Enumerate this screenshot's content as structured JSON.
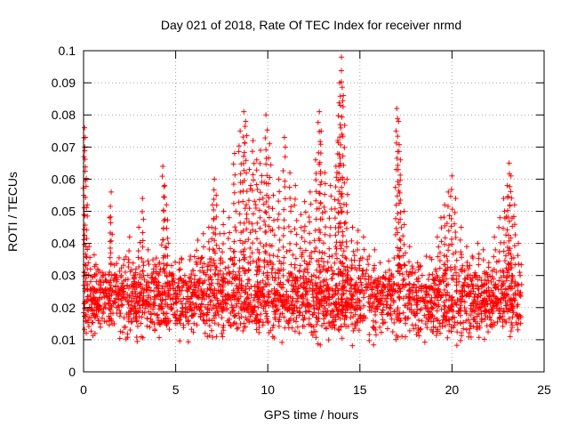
{
  "chart_data": {
    "type": "scatter",
    "title": "Day 021 of 2018, Rate Of TEC Index for receiver nrmd",
    "xlabel": "GPS time / hours",
    "ylabel": "ROTI / TECUs",
    "xlim": [
      0,
      25
    ],
    "ylim": [
      0,
      0.1
    ],
    "x_ticks": [
      "0",
      "5",
      "10",
      "15",
      "20",
      "25"
    ],
    "y_ticks": [
      "0",
      "0.01",
      "0.02",
      "0.03",
      "0.04",
      "0.05",
      "0.06",
      "0.07",
      "0.08",
      "0.09",
      "0.1"
    ],
    "grid": true,
    "marker": "+",
    "color": "#ff0000",
    "series": [
      {
        "x": [
          0.05,
          0.1,
          0.2,
          0.3,
          0.5,
          0.7,
          0.9,
          1.2,
          1.4,
          1.5,
          1.8,
          2.2,
          2.5,
          2.8,
          3.0,
          3.2,
          3.5,
          3.8,
          4.0,
          4.3,
          4.4,
          4.5,
          4.6,
          4.8,
          5.2,
          5.5,
          5.8,
          6.2,
          6.5,
          6.8,
          7.0,
          7.1,
          7.2,
          7.4,
          7.6,
          7.9,
          8.2,
          8.5,
          8.7,
          8.8,
          9.0,
          9.2,
          9.4,
          9.6,
          9.8,
          9.9,
          10.1,
          10.3,
          10.6,
          10.9,
          11.2,
          11.5,
          11.8,
          12.0,
          12.3,
          12.6,
          12.8,
          12.9,
          13.1,
          13.4,
          13.7,
          13.8,
          13.9,
          14.0,
          14.1,
          14.3,
          14.6,
          14.9,
          15.2,
          15.5,
          15.8,
          16.1,
          16.4,
          16.7,
          17.0,
          17.1,
          17.2,
          17.4,
          17.7,
          18.0,
          18.3,
          18.6,
          18.9,
          19.2,
          19.4,
          19.6,
          19.8,
          20.0,
          20.2,
          20.5,
          20.8,
          21.1,
          21.4,
          21.7,
          22.0,
          22.3,
          22.6,
          22.8,
          23.0,
          23.1,
          23.2,
          23.4,
          23.6,
          23.7
        ],
        "y": [
          0.076,
          0.073,
          0.052,
          0.039,
          0.022,
          0.018,
          0.015,
          0.02,
          0.048,
          0.056,
          0.03,
          0.035,
          0.042,
          0.025,
          0.045,
          0.054,
          0.038,
          0.032,
          0.028,
          0.064,
          0.058,
          0.052,
          0.04,
          0.03,
          0.034,
          0.028,
          0.036,
          0.041,
          0.043,
          0.045,
          0.052,
          0.06,
          0.055,
          0.043,
          0.05,
          0.048,
          0.068,
          0.075,
          0.081,
          0.078,
          0.063,
          0.072,
          0.066,
          0.069,
          0.059,
          0.08,
          0.071,
          0.055,
          0.06,
          0.073,
          0.062,
          0.058,
          0.049,
          0.053,
          0.056,
          0.066,
          0.081,
          0.075,
          0.062,
          0.058,
          0.064,
          0.072,
          0.09,
          0.098,
          0.086,
          0.06,
          0.045,
          0.044,
          0.042,
          0.036,
          0.038,
          0.034,
          0.031,
          0.03,
          0.082,
          0.078,
          0.066,
          0.05,
          0.039,
          0.031,
          0.033,
          0.036,
          0.035,
          0.042,
          0.048,
          0.052,
          0.056,
          0.061,
          0.054,
          0.045,
          0.039,
          0.036,
          0.04,
          0.038,
          0.034,
          0.042,
          0.048,
          0.054,
          0.058,
          0.065,
          0.061,
          0.052,
          0.04,
          0.03
        ]
      }
    ],
    "base_band": {
      "y_low": 0.006,
      "y_high": 0.033,
      "x_start": 0.0,
      "x_end": 23.8
    }
  }
}
